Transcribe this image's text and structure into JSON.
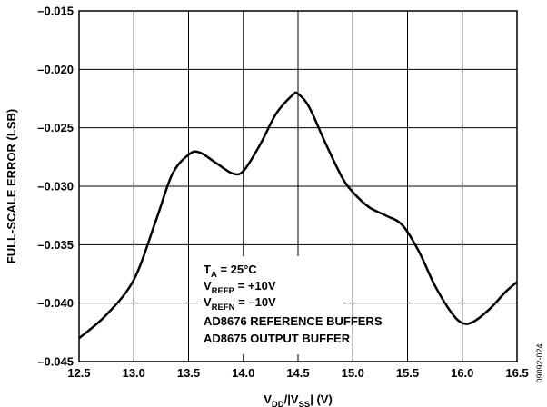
{
  "chart_data": {
    "type": "line",
    "xlabel": {
      "main": "V",
      "sub1": "DD",
      "mid": "/|V",
      "sub2": "SS",
      "end": "| (V)"
    },
    "ylabel": "FULL-SCALE ERROR (LSB)",
    "xlim": [
      12.5,
      16.5
    ],
    "ylim": [
      -0.045,
      -0.015
    ],
    "x_ticks": [
      12.5,
      13.0,
      13.5,
      14.0,
      14.5,
      15.0,
      15.5,
      16.0,
      16.5
    ],
    "x_tick_labels": [
      "12.5",
      "13.0",
      "13.5",
      "14.0",
      "14.5",
      "15.0",
      "15.5",
      "16.0",
      "16.5"
    ],
    "y_ticks": [
      -0.015,
      -0.02,
      -0.025,
      -0.03,
      -0.035,
      -0.04,
      -0.045
    ],
    "y_tick_labels": [
      "–0.015",
      "–0.020",
      "–0.025",
      "–0.030",
      "–0.035",
      "–0.040",
      "–0.045"
    ],
    "grid": true,
    "series": [
      {
        "x": [
          12.5,
          12.75,
          13.0,
          13.2,
          13.35,
          13.5,
          13.6,
          13.75,
          13.9,
          14.0,
          14.15,
          14.3,
          14.45,
          14.5,
          14.6,
          14.75,
          14.9,
          15.0,
          15.15,
          15.3,
          15.45,
          15.6,
          15.75,
          15.9,
          16.0,
          16.1,
          16.25,
          16.4,
          16.5
        ],
        "y": [
          -0.043,
          -0.041,
          -0.038,
          -0.033,
          -0.029,
          -0.0273,
          -0.0271,
          -0.028,
          -0.0289,
          -0.0287,
          -0.0265,
          -0.0238,
          -0.0222,
          -0.0221,
          -0.0232,
          -0.0263,
          -0.0292,
          -0.0305,
          -0.0318,
          -0.0325,
          -0.0333,
          -0.0355,
          -0.0385,
          -0.0408,
          -0.0417,
          -0.0416,
          -0.0405,
          -0.039,
          -0.0382
        ]
      }
    ],
    "annotation": {
      "line1": {
        "main": "T",
        "sub": "A",
        "rest": " = 25°C"
      },
      "line2": {
        "main": "V",
        "sub": "REFP",
        "rest": " = +10V"
      },
      "line3": {
        "main": "V",
        "sub": "REFN",
        "rest": " = –10V"
      },
      "line4": "AD8676 REFERENCE BUFFERS",
      "line5": "AD8675 OUTPUT BUFFER"
    },
    "figure_id": "09092-024"
  }
}
